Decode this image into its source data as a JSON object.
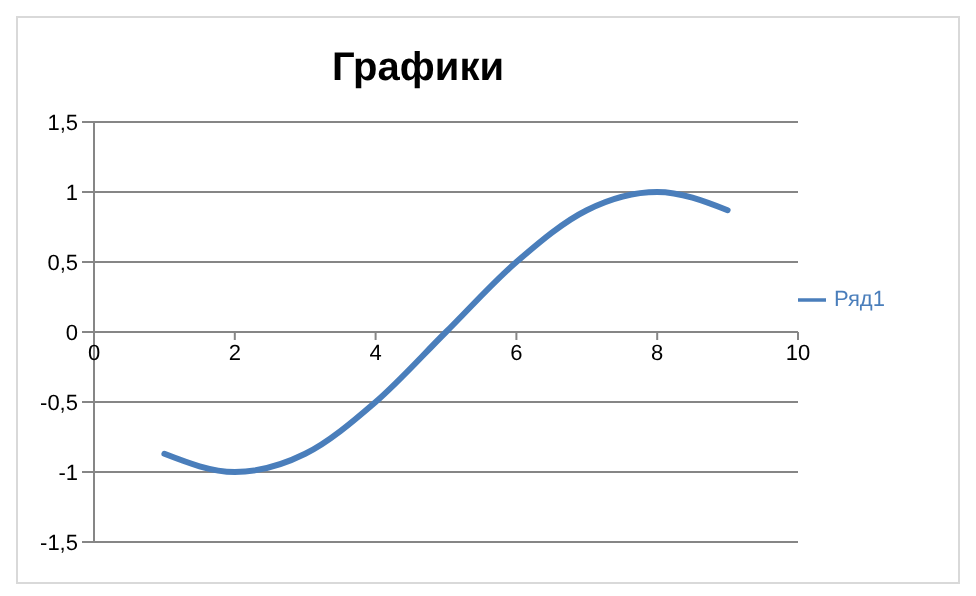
{
  "chart_data": {
    "type": "line",
    "title": "Графики",
    "x": [
      1,
      2,
      3,
      4,
      5,
      6,
      7,
      8,
      9
    ],
    "series": [
      {
        "name": "Ряд1",
        "color": "#4a7ebb",
        "values": [
          -0.87,
          -1,
          -0.87,
          -0.5,
          0,
          0.5,
          0.87,
          1,
          0.87
        ]
      }
    ],
    "xlim": [
      0,
      10
    ],
    "xticks": [
      0,
      2,
      4,
      6,
      8,
      10
    ],
    "ylim": [
      -1.5,
      1.5
    ],
    "yticks": [
      {
        "value": -1.5,
        "label": "-1,5"
      },
      -1,
      {
        "value": -0.5,
        "label": "-0,5"
      },
      0,
      {
        "value": 0.5,
        "label": "0,5"
      },
      1,
      {
        "value": 1.5,
        "label": "1,5"
      }
    ],
    "grid": "y",
    "legend": "right",
    "marker": "none",
    "line_style": "solid"
  }
}
